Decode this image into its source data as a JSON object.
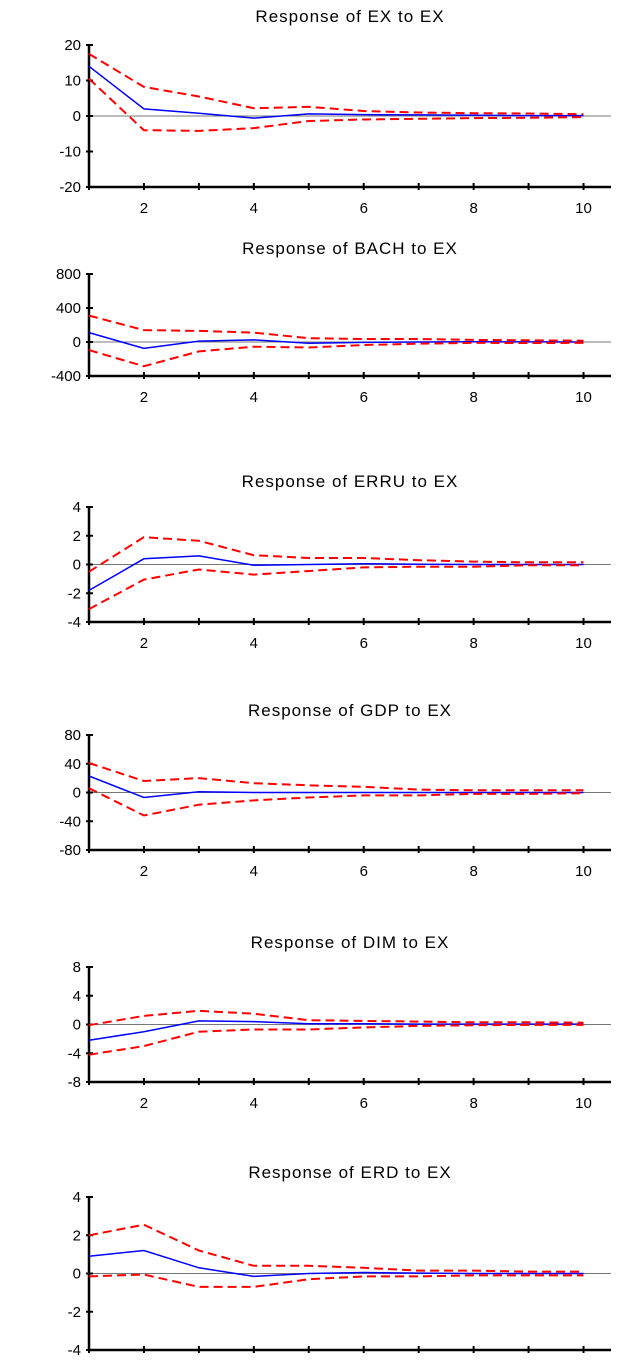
{
  "chart_data": [
    {
      "type": "line",
      "title": "Response of EX to EX",
      "x": [
        1,
        2,
        3,
        4,
        5,
        6,
        7,
        8,
        9,
        10
      ],
      "xticks": [
        "2",
        "4",
        "6",
        "8",
        "10"
      ],
      "ylim": [
        -20,
        20
      ],
      "yticks": [
        "20",
        "10",
        "0",
        "-10",
        "-20"
      ],
      "series": [
        {
          "role": "response",
          "color": "#0000ff",
          "dash": false,
          "values": [
            14,
            2,
            0.8,
            -0.6,
            0.6,
            0.4,
            0.3,
            0.2,
            0.1,
            0.1
          ]
        },
        {
          "role": "upper",
          "color": "#ff0000",
          "dash": true,
          "values": [
            17.5,
            8.2,
            5.5,
            2.2,
            2.6,
            1.4,
            1.0,
            0.8,
            0.7,
            0.5
          ]
        },
        {
          "role": "lower",
          "color": "#ff0000",
          "dash": true,
          "values": [
            10.5,
            -4.0,
            -4.2,
            -3.4,
            -1.4,
            -1.0,
            -0.8,
            -0.6,
            -0.5,
            -0.3
          ]
        }
      ]
    },
    {
      "type": "line",
      "title": "Response of BACH to EX",
      "x": [
        1,
        2,
        3,
        4,
        5,
        6,
        7,
        8,
        9,
        10
      ],
      "xticks": [
        "2",
        "4",
        "6",
        "8",
        "10"
      ],
      "ylim": [
        -400,
        800
      ],
      "yticks": [
        "800",
        "400",
        "0",
        "-400"
      ],
      "series": [
        {
          "role": "response",
          "color": "#0000ff",
          "dash": false,
          "values": [
            110,
            -75,
            10,
            25,
            -15,
            -5,
            0,
            2,
            1,
            0
          ]
        },
        {
          "role": "upper",
          "color": "#ff0000",
          "dash": true,
          "values": [
            310,
            140,
            130,
            110,
            45,
            35,
            35,
            25,
            20,
            15
          ]
        },
        {
          "role": "lower",
          "color": "#ff0000",
          "dash": true,
          "values": [
            -95,
            -285,
            -110,
            -55,
            -65,
            -35,
            -20,
            -10,
            -12,
            -10
          ]
        }
      ]
    },
    {
      "type": "line",
      "title": "Response of ERRU to EX",
      "x": [
        1,
        2,
        3,
        4,
        5,
        6,
        7,
        8,
        9,
        10
      ],
      "xticks": [
        "2",
        "4",
        "6",
        "8",
        "10"
      ],
      "ylim": [
        -4,
        4
      ],
      "yticks": [
        "4",
        "2",
        "0",
        "-2",
        "-4"
      ],
      "series": [
        {
          "role": "response",
          "color": "#0000ff",
          "dash": false,
          "values": [
            -1.8,
            0.4,
            0.6,
            -0.05,
            0.0,
            0.05,
            0.02,
            0.0,
            0.0,
            0.0
          ]
        },
        {
          "role": "upper",
          "color": "#ff0000",
          "dash": true,
          "values": [
            -0.5,
            1.9,
            1.65,
            0.65,
            0.45,
            0.45,
            0.3,
            0.2,
            0.15,
            0.15
          ]
        },
        {
          "role": "lower",
          "color": "#ff0000",
          "dash": true,
          "values": [
            -3.1,
            -1.05,
            -0.35,
            -0.7,
            -0.45,
            -0.2,
            -0.15,
            -0.15,
            -0.05,
            -0.05
          ]
        }
      ]
    },
    {
      "type": "line",
      "title": "Response of GDP to EX",
      "x": [
        1,
        2,
        3,
        4,
        5,
        6,
        7,
        8,
        9,
        10
      ],
      "xticks": [
        "2",
        "4",
        "6",
        "8",
        "10"
      ],
      "ylim": [
        -80,
        80
      ],
      "yticks": [
        "80",
        "40",
        "0",
        "-40",
        "-80"
      ],
      "series": [
        {
          "role": "response",
          "color": "#0000ff",
          "dash": false,
          "values": [
            23,
            -7,
            1,
            0,
            0,
            0,
            0,
            0,
            0,
            0
          ]
        },
        {
          "role": "upper",
          "color": "#ff0000",
          "dash": true,
          "values": [
            41,
            16,
            20,
            13,
            10,
            8,
            4,
            3,
            3,
            3
          ]
        },
        {
          "role": "lower",
          "color": "#ff0000",
          "dash": true,
          "values": [
            6,
            -32,
            -17,
            -11,
            -7,
            -4,
            -4,
            -2,
            -2,
            -1
          ]
        }
      ]
    },
    {
      "type": "line",
      "title": "Response of DIM to EX",
      "x": [
        1,
        2,
        3,
        4,
        5,
        6,
        7,
        8,
        9,
        10
      ],
      "xticks": [
        "2",
        "4",
        "6",
        "8",
        "10"
      ],
      "ylim": [
        -8,
        8
      ],
      "yticks": [
        "8",
        "4",
        "0",
        "-4",
        "-8"
      ],
      "series": [
        {
          "role": "response",
          "color": "#0000ff",
          "dash": false,
          "values": [
            -2.2,
            -1.0,
            0.5,
            0.4,
            0.1,
            0.1,
            0.05,
            0.05,
            0.05,
            0.05
          ]
        },
        {
          "role": "upper",
          "color": "#ff0000",
          "dash": true,
          "values": [
            -0.1,
            1.2,
            1.9,
            1.5,
            0.6,
            0.5,
            0.4,
            0.3,
            0.3,
            0.25
          ]
        },
        {
          "role": "lower",
          "color": "#ff0000",
          "dash": true,
          "values": [
            -4.2,
            -3.0,
            -1.0,
            -0.7,
            -0.7,
            -0.4,
            -0.2,
            -0.1,
            -0.05,
            -0.05
          ]
        }
      ]
    },
    {
      "type": "line",
      "title": "Response of ERD to EX",
      "x": [
        1,
        2,
        3,
        4,
        5,
        6,
        7,
        8,
        9,
        10
      ],
      "xticks": [
        "2",
        "4",
        "6",
        "8",
        "10"
      ],
      "ylim": [
        -4,
        4
      ],
      "yticks": [
        "4",
        "2",
        "0",
        "-2",
        "-4"
      ],
      "series": [
        {
          "role": "response",
          "color": "#0000ff",
          "dash": false,
          "values": [
            0.9,
            1.2,
            0.3,
            -0.15,
            0.0,
            0.05,
            0.02,
            0.0,
            0.0,
            0.0
          ]
        },
        {
          "role": "upper",
          "color": "#ff0000",
          "dash": true,
          "values": [
            2.0,
            2.55,
            1.2,
            0.4,
            0.4,
            0.3,
            0.15,
            0.15,
            0.1,
            0.1
          ]
        },
        {
          "role": "lower",
          "color": "#ff0000",
          "dash": true,
          "values": [
            -0.15,
            -0.05,
            -0.7,
            -0.7,
            -0.3,
            -0.15,
            -0.15,
            -0.1,
            -0.1,
            -0.1
          ]
        }
      ]
    }
  ]
}
